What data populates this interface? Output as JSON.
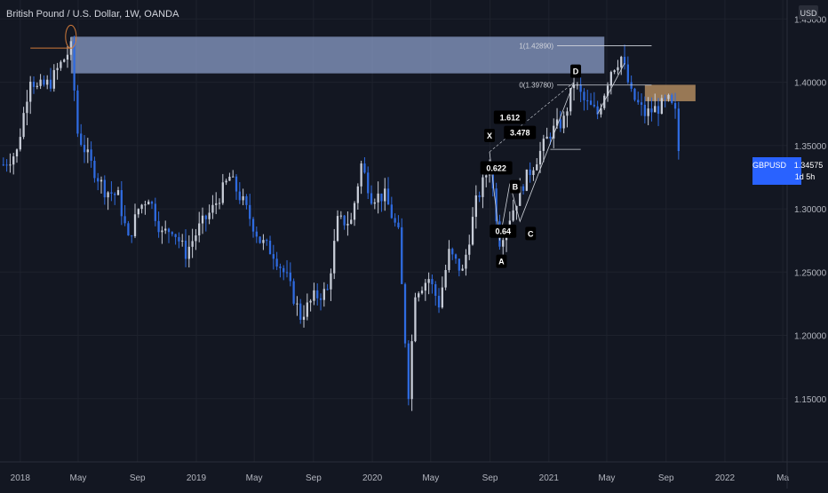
{
  "header": {
    "symbol_title": "British Pound / U.S. Dollar, 1W, OANDA",
    "currency_button": "USD"
  },
  "colors": {
    "background": "#131722",
    "up_candle": "#c8cdd8",
    "down_candle": "#2f6be0",
    "grid": "#1e222d",
    "axis_text": "#b2b5be",
    "supply_zone": "#8b9ec8",
    "demand_zone": "#b08a5e",
    "harmonic_line": "#d0d4dc",
    "price_badge": "#2962ff",
    "fib_circle": "#d07a3a"
  },
  "chart_data": {
    "type": "candlestick",
    "symbol": "GBPUSD",
    "interval": "1W",
    "exchange": "OANDA",
    "y_axis": {
      "ticks": [
        "1.45000",
        "1.40000",
        "1.35000",
        "1.30000",
        "1.25000",
        "1.20000",
        "1.15000"
      ],
      "tick_values": [
        1.45,
        1.4,
        1.35,
        1.3,
        1.25,
        1.2,
        1.15
      ],
      "ylim": [
        1.1,
        1.465
      ]
    },
    "x_axis": {
      "labels": [
        "2018",
        "May",
        "Sep",
        "2019",
        "May",
        "Sep",
        "2020",
        "May",
        "Sep",
        "2021",
        "May",
        "Sep",
        "2022",
        "Ma"
      ],
      "label_dates": [
        "2018-01-01",
        "2018-05-01",
        "2018-09-01",
        "2019-01-01",
        "2019-05-01",
        "2019-09-01",
        "2020-01-01",
        "2020-05-01",
        "2020-09-01",
        "2021-01-01",
        "2021-05-01",
        "2021-09-01",
        "2022-01-01",
        "2022-05-01"
      ],
      "range": [
        "2017-11-20",
        "2022-05-10"
      ]
    },
    "price_series": [
      [
        "2017-11-27",
        1.335
      ],
      [
        "2017-12-25",
        1.345
      ],
      [
        "2018-01-22",
        1.405
      ],
      [
        "2018-02-05",
        1.395
      ],
      [
        "2018-03-05",
        1.4
      ],
      [
        "2018-03-19",
        1.41
      ],
      [
        "2018-04-16",
        1.427
      ],
      [
        "2018-04-30",
        1.36
      ],
      [
        "2018-05-28",
        1.335
      ],
      [
        "2018-06-25",
        1.315
      ],
      [
        "2018-07-23",
        1.31
      ],
      [
        "2018-08-13",
        1.275
      ],
      [
        "2018-09-03",
        1.3
      ],
      [
        "2018-09-24",
        1.31
      ],
      [
        "2018-10-22",
        1.28
      ],
      [
        "2018-11-12",
        1.285
      ],
      [
        "2018-12-10",
        1.265
      ],
      [
        "2019-01-07",
        1.285
      ],
      [
        "2019-02-04",
        1.3
      ],
      [
        "2019-03-11",
        1.325
      ],
      [
        "2019-04-08",
        1.305
      ],
      [
        "2019-05-13",
        1.275
      ],
      [
        "2019-06-10",
        1.265
      ],
      [
        "2019-07-08",
        1.245
      ],
      [
        "2019-08-05",
        1.215
      ],
      [
        "2019-09-02",
        1.23
      ],
      [
        "2019-09-30",
        1.235
      ],
      [
        "2019-10-21",
        1.29
      ],
      [
        "2019-11-18",
        1.29
      ],
      [
        "2019-12-09",
        1.335
      ],
      [
        "2019-12-30",
        1.31
      ],
      [
        "2020-01-27",
        1.31
      ],
      [
        "2020-02-24",
        1.28
      ],
      [
        "2020-03-16",
        1.155
      ],
      [
        "2020-03-30",
        1.235
      ],
      [
        "2020-04-27",
        1.245
      ],
      [
        "2020-05-18",
        1.225
      ],
      [
        "2020-06-08",
        1.265
      ],
      [
        "2020-07-06",
        1.25
      ],
      [
        "2020-08-03",
        1.305
      ],
      [
        "2020-08-31",
        1.335
      ],
      [
        "2020-09-21",
        1.275
      ],
      [
        "2020-10-19",
        1.3
      ],
      [
        "2020-11-09",
        1.32
      ],
      [
        "2020-12-07",
        1.34
      ],
      [
        "2021-01-04",
        1.36
      ],
      [
        "2021-02-01",
        1.37
      ],
      [
        "2021-02-22",
        1.4
      ],
      [
        "2021-03-15",
        1.385
      ],
      [
        "2021-04-12",
        1.375
      ],
      [
        "2021-05-10",
        1.41
      ],
      [
        "2021-05-31",
        1.42
      ],
      [
        "2021-06-21",
        1.39
      ],
      [
        "2021-07-19",
        1.375
      ],
      [
        "2021-08-16",
        1.38
      ],
      [
        "2021-09-06",
        1.385
      ],
      [
        "2021-09-20",
        1.375
      ],
      [
        "2021-09-27",
        1.346
      ]
    ],
    "current_price": {
      "symbol": "GBPUSD",
      "value": "1.34575",
      "countdown": "1d 5h"
    },
    "zones": [
      {
        "type": "supply",
        "from": "2018-04-16",
        "to": "2021-04-26",
        "top": 1.436,
        "bottom": 1.407
      },
      {
        "type": "demand",
        "from": "2021-07-19",
        "to": "2021-11-01",
        "top": 1.398,
        "bottom": 1.385
      }
    ],
    "harmonic_pattern": {
      "points": [
        {
          "label": "X",
          "date": "2020-08-31",
          "price": 1.345
        },
        {
          "label": "A",
          "date": "2020-09-21",
          "price": 1.275
        },
        {
          "label": "B",
          "date": "2020-10-12",
          "price": 1.32
        },
        {
          "label": "C",
          "date": "2020-11-02",
          "price": 1.29
        },
        {
          "label": "D",
          "date": "2021-02-22",
          "price": 1.4
        }
      ],
      "ratios": [
        {
          "value": "0.622",
          "date": "2020-09-14",
          "price": 1.332
        },
        {
          "value": "0.64",
          "date": "2020-09-28",
          "price": 1.282
        },
        {
          "value": "1.612",
          "date": "2020-10-12",
          "price": 1.372
        },
        {
          "value": "3.478",
          "date": "2020-11-02",
          "price": 1.36
        }
      ]
    },
    "fib_levels": [
      {
        "label": "1(1.42890)",
        "price": 1.4289
      },
      {
        "label": "0(1.39780)",
        "price": 1.3978
      }
    ]
  }
}
